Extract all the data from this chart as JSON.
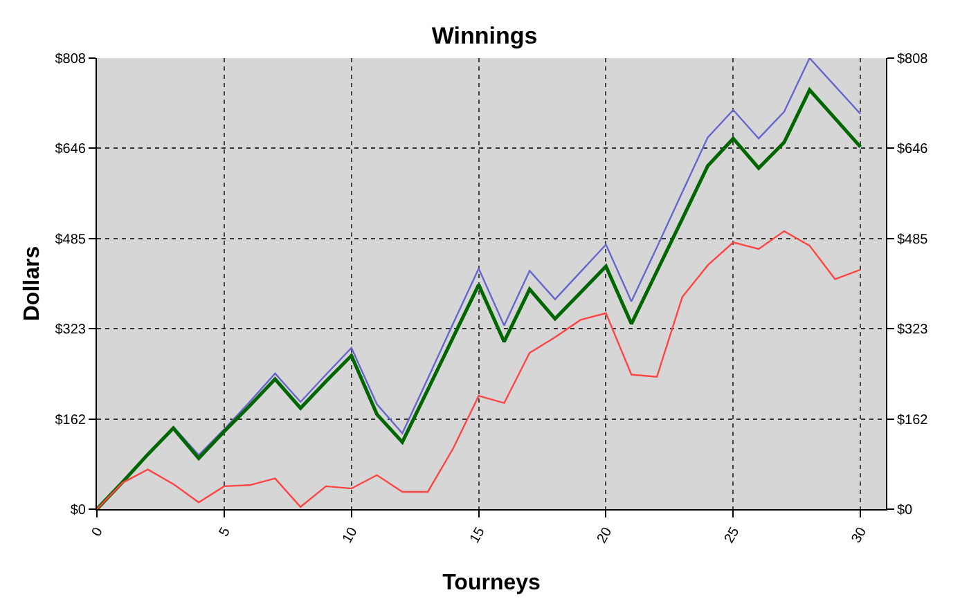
{
  "chart_data": {
    "type": "line",
    "title": "Winnings",
    "xlabel": "Tourneys",
    "ylabel": "Dollars",
    "x": [
      0,
      1,
      2,
      3,
      4,
      5,
      6,
      7,
      8,
      9,
      10,
      11,
      12,
      13,
      14,
      15,
      16,
      17,
      18,
      19,
      20,
      21,
      22,
      23,
      24,
      25,
      26,
      27,
      28,
      29,
      30
    ],
    "series": [
      {
        "color": "#6666cc",
        "values": [
          null,
          null,
          null,
          148,
          97,
          143,
          192,
          243,
          192,
          241,
          289,
          188,
          136,
          234,
          333,
          431,
          329,
          427,
          376,
          425,
          474,
          372,
          469,
          568,
          666,
          715,
          664,
          712,
          808,
          758,
          708
        ]
      },
      {
        "color": "#006600",
        "values": [
          0,
          48,
          98,
          145,
          91,
          139,
          185,
          233,
          181,
          229,
          275,
          170,
          120,
          214,
          308,
          402,
          300,
          394,
          341,
          388,
          435,
          332,
          426,
          520,
          615,
          664,
          611,
          657,
          751,
          700,
          649
        ]
      },
      {
        "color": "#ff4444",
        "values": [
          0,
          47,
          71,
          45,
          12,
          41,
          43,
          55,
          4,
          41,
          37,
          61,
          31,
          31,
          109,
          203,
          190,
          280,
          308,
          339,
          351,
          241,
          237,
          380,
          437,
          478,
          466,
          498,
          472,
          412,
          429
        ]
      }
    ],
    "xlim": [
      0,
      31
    ],
    "xticks": [
      0,
      5,
      10,
      15,
      20,
      25,
      30
    ],
    "ylim": [
      0,
      808
    ],
    "yticks": [
      {
        "value": 0,
        "label": "$0"
      },
      {
        "value": 161.6,
        "label": "$162"
      },
      {
        "value": 323.2,
        "label": "$323"
      },
      {
        "value": 484.8,
        "label": "$485"
      },
      {
        "value": 646.4,
        "label": "$646"
      },
      {
        "value": 808,
        "label": "$808"
      }
    ],
    "y2lim": [
      0,
      808
    ],
    "y2ticks": [
      {
        "value": 0,
        "label": "$0"
      },
      {
        "value": 161.6,
        "label": "$162"
      },
      {
        "value": 323.2,
        "label": "$323"
      },
      {
        "value": 484.8,
        "label": "$485"
      },
      {
        "value": 646.4,
        "label": "$646"
      },
      {
        "value": 808,
        "label": "$808"
      }
    ],
    "grid": true,
    "line_style": "solid",
    "marker": "none"
  }
}
